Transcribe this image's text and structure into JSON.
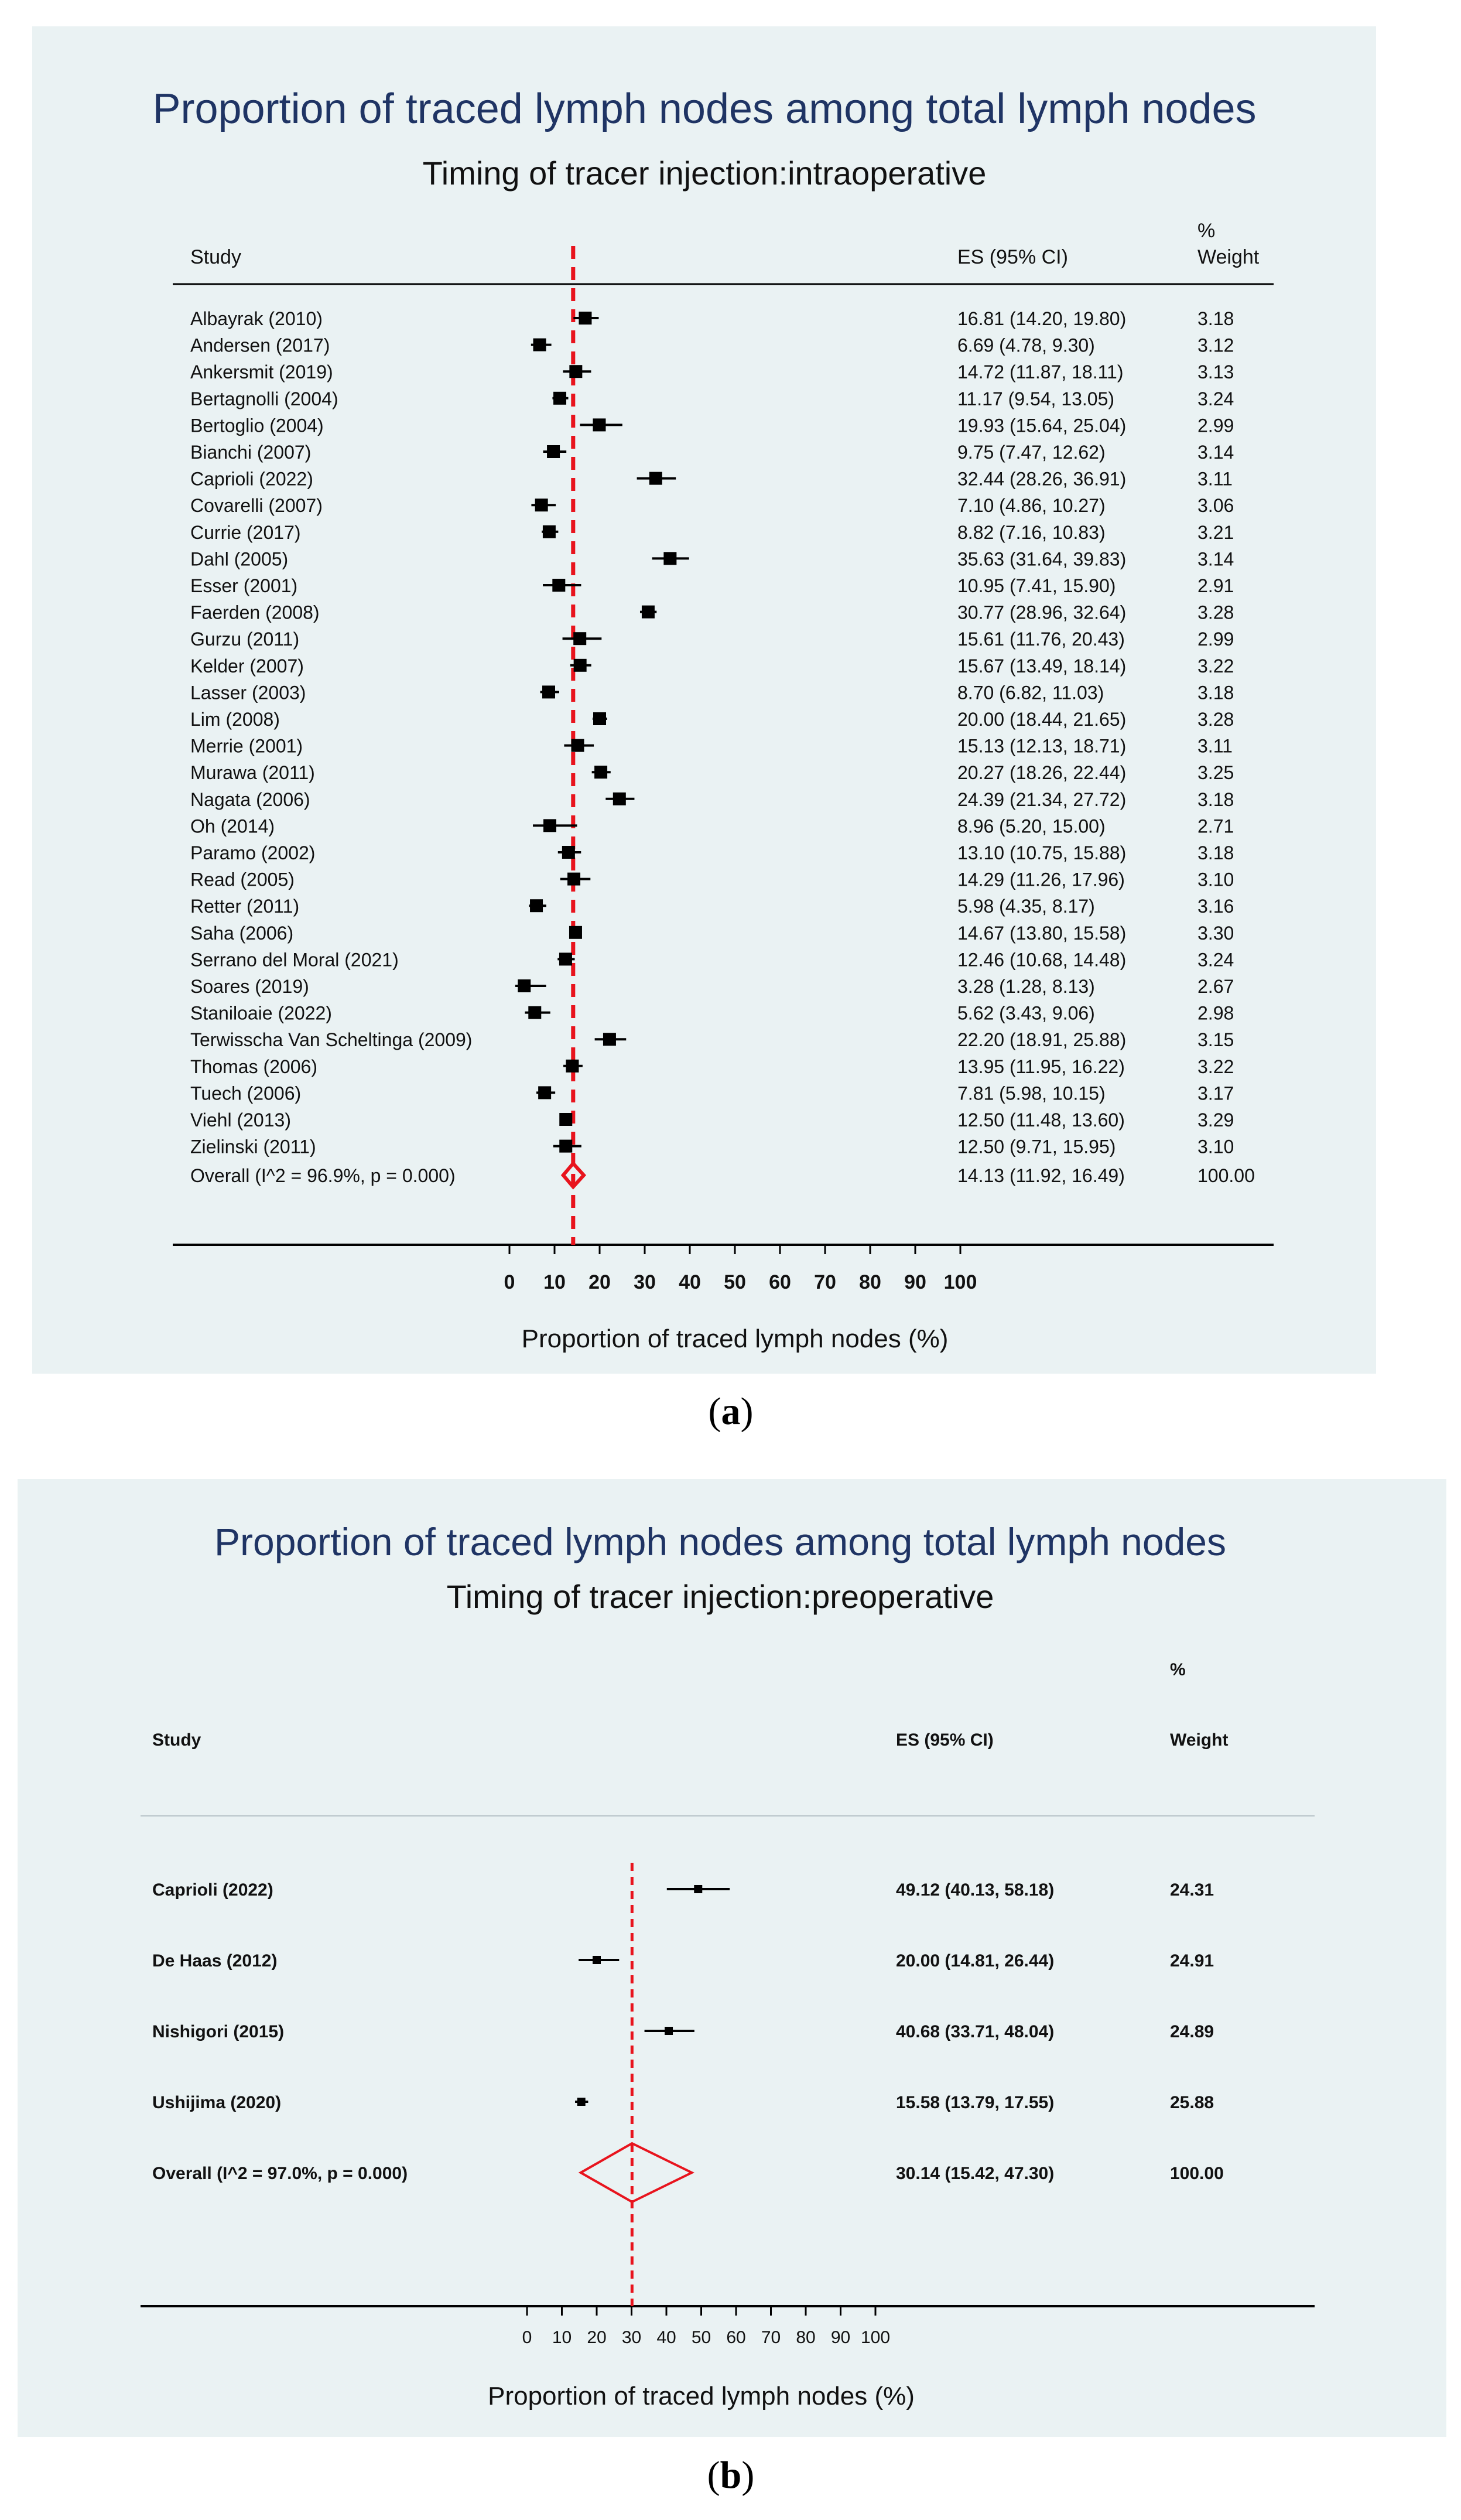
{
  "colors": {
    "title": "#1f3464",
    "panel_bg": "#eaf2f3",
    "marker": "#000000",
    "overall_line": "#e8141d",
    "diamond": "#e8141d"
  },
  "captions": {
    "a": "a",
    "b": "b"
  },
  "chart_data": [
    {
      "type": "forest",
      "title": "Proportion of traced lymph nodes among total lymph nodes",
      "subtitle": "Timing of tracer injection:intraoperative",
      "headers": {
        "study": "Study",
        "es": "ES (95% CI)",
        "weight_top": "%",
        "weight": "Weight"
      },
      "xlabel": "Proportion of traced lymph nodes (%)",
      "xlim": [
        0,
        100
      ],
      "ticks": [
        "0",
        "10",
        "20",
        "30",
        "40",
        "50",
        "60",
        "70",
        "80",
        "90",
        "100"
      ],
      "studies": [
        {
          "label": "Albayrak (2010)",
          "es": 16.81,
          "lo": 14.2,
          "hi": 19.8,
          "ci_text": "16.81 (14.20, 19.80)",
          "weight": "3.18"
        },
        {
          "label": "Andersen (2017)",
          "es": 6.69,
          "lo": 4.78,
          "hi": 9.3,
          "ci_text": "6.69 (4.78, 9.30)",
          "weight": "3.12"
        },
        {
          "label": "Ankersmit (2019)",
          "es": 14.72,
          "lo": 11.87,
          "hi": 18.11,
          "ci_text": "14.72 (11.87, 18.11)",
          "weight": "3.13"
        },
        {
          "label": "Bertagnolli (2004)",
          "es": 11.17,
          "lo": 9.54,
          "hi": 13.05,
          "ci_text": "11.17 (9.54, 13.05)",
          "weight": "3.24"
        },
        {
          "label": "Bertoglio (2004)",
          "es": 19.93,
          "lo": 15.64,
          "hi": 25.04,
          "ci_text": "19.93 (15.64, 25.04)",
          "weight": "2.99"
        },
        {
          "label": "Bianchi (2007)",
          "es": 9.75,
          "lo": 7.47,
          "hi": 12.62,
          "ci_text": "9.75 (7.47, 12.62)",
          "weight": "3.14"
        },
        {
          "label": "Caprioli (2022)",
          "es": 32.44,
          "lo": 28.26,
          "hi": 36.91,
          "ci_text": "32.44 (28.26, 36.91)",
          "weight": "3.11"
        },
        {
          "label": "Covarelli (2007)",
          "es": 7.1,
          "lo": 4.86,
          "hi": 10.27,
          "ci_text": "7.10 (4.86, 10.27)",
          "weight": "3.06"
        },
        {
          "label": "Currie (2017)",
          "es": 8.82,
          "lo": 7.16,
          "hi": 10.83,
          "ci_text": "8.82 (7.16, 10.83)",
          "weight": "3.21"
        },
        {
          "label": "Dahl (2005)",
          "es": 35.63,
          "lo": 31.64,
          "hi": 39.83,
          "ci_text": "35.63 (31.64, 39.83)",
          "weight": "3.14"
        },
        {
          "label": "Esser (2001)",
          "es": 10.95,
          "lo": 7.41,
          "hi": 15.9,
          "ci_text": "10.95 (7.41, 15.90)",
          "weight": "2.91"
        },
        {
          "label": "Faerden (2008)",
          "es": 30.77,
          "lo": 28.96,
          "hi": 32.64,
          "ci_text": "30.77 (28.96, 32.64)",
          "weight": "3.28"
        },
        {
          "label": "Gurzu (2011)",
          "es": 15.61,
          "lo": 11.76,
          "hi": 20.43,
          "ci_text": "15.61 (11.76, 20.43)",
          "weight": "2.99"
        },
        {
          "label": "Kelder (2007)",
          "es": 15.67,
          "lo": 13.49,
          "hi": 18.14,
          "ci_text": "15.67 (13.49, 18.14)",
          "weight": "3.22"
        },
        {
          "label": "Lasser (2003)",
          "es": 8.7,
          "lo": 6.82,
          "hi": 11.03,
          "ci_text": "8.70 (6.82, 11.03)",
          "weight": "3.18"
        },
        {
          "label": "Lim (2008)",
          "es": 20.0,
          "lo": 18.44,
          "hi": 21.65,
          "ci_text": "20.00 (18.44, 21.65)",
          "weight": "3.28"
        },
        {
          "label": "Merrie (2001)",
          "es": 15.13,
          "lo": 12.13,
          "hi": 18.71,
          "ci_text": "15.13 (12.13, 18.71)",
          "weight": "3.11"
        },
        {
          "label": "Murawa (2011)",
          "es": 20.27,
          "lo": 18.26,
          "hi": 22.44,
          "ci_text": "20.27 (18.26, 22.44)",
          "weight": "3.25"
        },
        {
          "label": "Nagata (2006)",
          "es": 24.39,
          "lo": 21.34,
          "hi": 27.72,
          "ci_text": "24.39 (21.34, 27.72)",
          "weight": "3.18"
        },
        {
          "label": "Oh (2014)",
          "es": 8.96,
          "lo": 5.2,
          "hi": 15.0,
          "ci_text": "8.96 (5.20, 15.00)",
          "weight": "2.71"
        },
        {
          "label": "Paramo (2002)",
          "es": 13.1,
          "lo": 10.75,
          "hi": 15.88,
          "ci_text": "13.10 (10.75, 15.88)",
          "weight": "3.18"
        },
        {
          "label": "Read (2005)",
          "es": 14.29,
          "lo": 11.26,
          "hi": 17.96,
          "ci_text": "14.29 (11.26, 17.96)",
          "weight": "3.10"
        },
        {
          "label": "Retter (2011)",
          "es": 5.98,
          "lo": 4.35,
          "hi": 8.17,
          "ci_text": "5.98 (4.35, 8.17)",
          "weight": "3.16"
        },
        {
          "label": "Saha (2006)",
          "es": 14.67,
          "lo": 13.8,
          "hi": 15.58,
          "ci_text": "14.67 (13.80, 15.58)",
          "weight": "3.30"
        },
        {
          "label": "Serrano del Moral (2021)",
          "es": 12.46,
          "lo": 10.68,
          "hi": 14.48,
          "ci_text": "12.46 (10.68, 14.48)",
          "weight": "3.24"
        },
        {
          "label": "Soares (2019)",
          "es": 3.28,
          "lo": 1.28,
          "hi": 8.13,
          "ci_text": "3.28 (1.28, 8.13)",
          "weight": "2.67"
        },
        {
          "label": "Staniloaie (2022)",
          "es": 5.62,
          "lo": 3.43,
          "hi": 9.06,
          "ci_text": "5.62 (3.43, 9.06)",
          "weight": "2.98"
        },
        {
          "label": "Terwisscha Van Scheltinga (2009)",
          "es": 22.2,
          "lo": 18.91,
          "hi": 25.88,
          "ci_text": "22.20 (18.91, 25.88)",
          "weight": "3.15"
        },
        {
          "label": "Thomas (2006)",
          "es": 13.95,
          "lo": 11.95,
          "hi": 16.22,
          "ci_text": "13.95 (11.95, 16.22)",
          "weight": "3.22"
        },
        {
          "label": "Tuech (2006)",
          "es": 7.81,
          "lo": 5.98,
          "hi": 10.15,
          "ci_text": "7.81 (5.98, 10.15)",
          "weight": "3.17"
        },
        {
          "label": "Viehl (2013)",
          "es": 12.5,
          "lo": 11.48,
          "hi": 13.6,
          "ci_text": "12.50 (11.48, 13.60)",
          "weight": "3.29"
        },
        {
          "label": "Zielinski (2011)",
          "es": 12.5,
          "lo": 9.71,
          "hi": 15.95,
          "ci_text": "12.50 (9.71, 15.95)",
          "weight": "3.10"
        }
      ],
      "overall": {
        "label": "Overall  (I^2 = 96.9%, p = 0.000)",
        "es": 14.13,
        "lo": 11.92,
        "hi": 16.49,
        "ci_text": "14.13 (11.92, 16.49)",
        "weight": "100.00"
      }
    },
    {
      "type": "forest",
      "title": "Proportion of traced lymph nodes among total lymph nodes",
      "subtitle": "Timing of tracer injection:preoperative",
      "headers": {
        "study": "Study",
        "es": "ES (95% CI)",
        "weight_top": "%",
        "weight": "Weight"
      },
      "xlabel": "Proportion of traced lymph nodes (%)",
      "xlim": [
        0,
        100
      ],
      "ticks": [
        "0",
        "10",
        "20",
        "30",
        "40",
        "50",
        "60",
        "70",
        "80",
        "90",
        "100"
      ],
      "studies": [
        {
          "label": "Caprioli (2022)",
          "es": 49.12,
          "lo": 40.13,
          "hi": 58.18,
          "ci_text": "49.12 (40.13, 58.18)",
          "weight": "24.31"
        },
        {
          "label": "De Haas (2012)",
          "es": 20.0,
          "lo": 14.81,
          "hi": 26.44,
          "ci_text": "20.00 (14.81, 26.44)",
          "weight": "24.91"
        },
        {
          "label": "Nishigori (2015)",
          "es": 40.68,
          "lo": 33.71,
          "hi": 48.04,
          "ci_text": "40.68 (33.71, 48.04)",
          "weight": "24.89"
        },
        {
          "label": "Ushijima (2020)",
          "es": 15.58,
          "lo": 13.79,
          "hi": 17.55,
          "ci_text": "15.58 (13.79, 17.55)",
          "weight": "25.88"
        }
      ],
      "overall": {
        "label": "Overall  (I^2 = 97.0%, p = 0.000)",
        "es": 30.14,
        "lo": 15.42,
        "hi": 47.3,
        "ci_text": "30.14 (15.42, 47.30)",
        "weight": "100.00"
      }
    }
  ]
}
